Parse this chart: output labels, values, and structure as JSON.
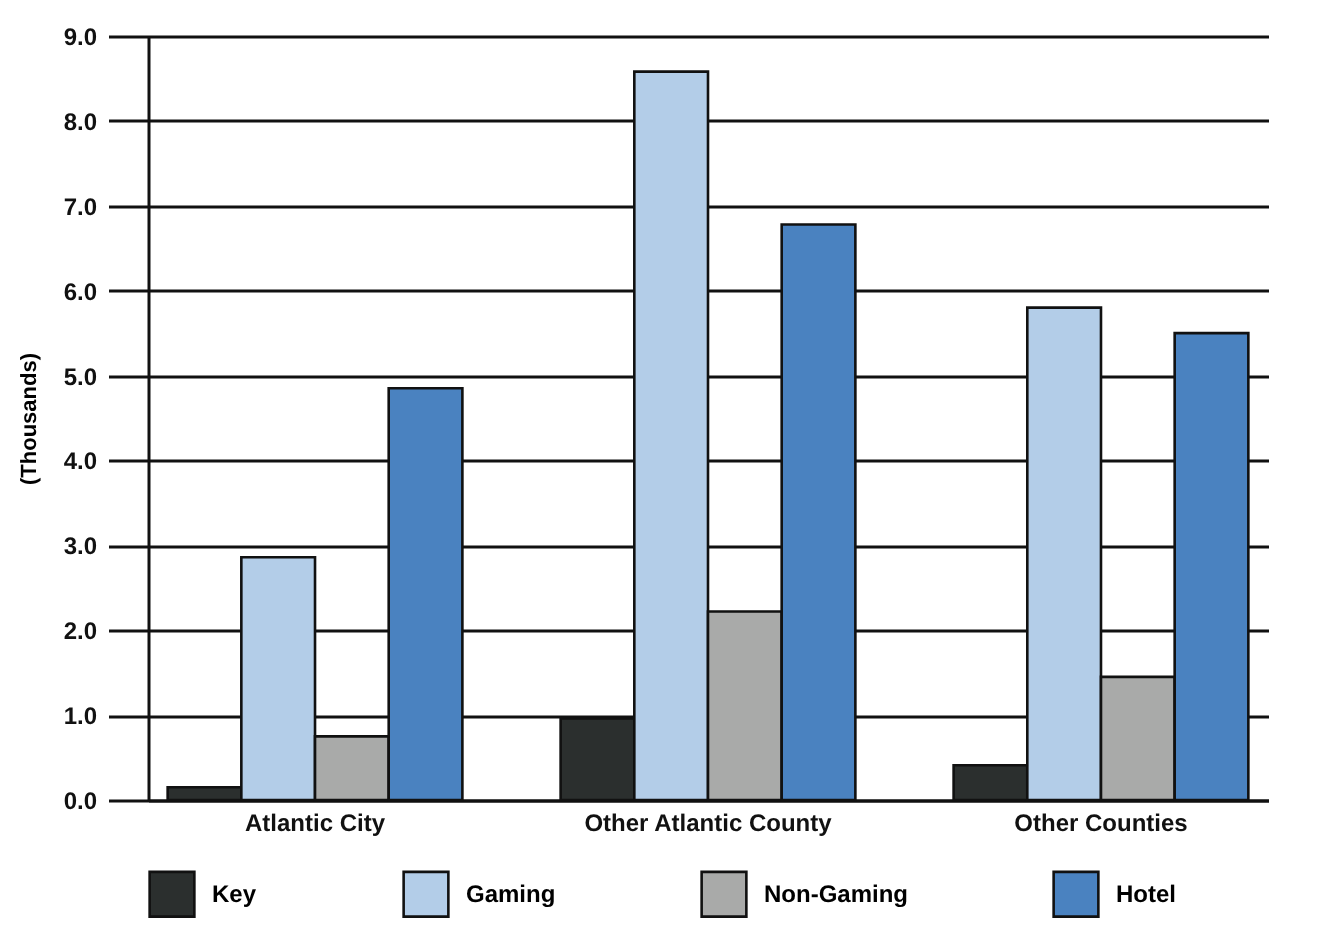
{
  "chart_data": {
    "type": "bar",
    "ylabel": "(Thousands)",
    "categories": [
      "Atlantic City",
      "Other Atlantic County",
      "Other Counties"
    ],
    "series": [
      {
        "name": "Key",
        "color": "#2b2f2e",
        "values": [
          0.15,
          0.96,
          0.41
        ]
      },
      {
        "name": "Gaming",
        "color": "#b3cde8",
        "values": [
          2.86,
          8.58,
          5.8
        ]
      },
      {
        "name": "Non-Gaming",
        "color": "#a9aaa9",
        "values": [
          0.75,
          2.22,
          1.45
        ]
      },
      {
        "name": "Hotel",
        "color": "#4a82c0",
        "values": [
          4.85,
          6.78,
          5.5
        ]
      }
    ],
    "ylim": [
      0,
      9
    ],
    "yticks": [
      {
        "value": 0,
        "label": "0.0"
      },
      {
        "value": 1,
        "label": "1.0"
      },
      {
        "value": 2,
        "label": "2.0"
      },
      {
        "value": 3,
        "label": "3.0"
      },
      {
        "value": 4,
        "label": "4.0"
      },
      {
        "value": 5,
        "label": "5.0"
      },
      {
        "value": 6,
        "label": "6.0"
      },
      {
        "value": 7,
        "label": "7.0"
      },
      {
        "value": 8,
        "label": "8.0"
      },
      {
        "value": 9,
        "label": "9.0"
      }
    ],
    "grid": "y",
    "legend": "bottom"
  }
}
